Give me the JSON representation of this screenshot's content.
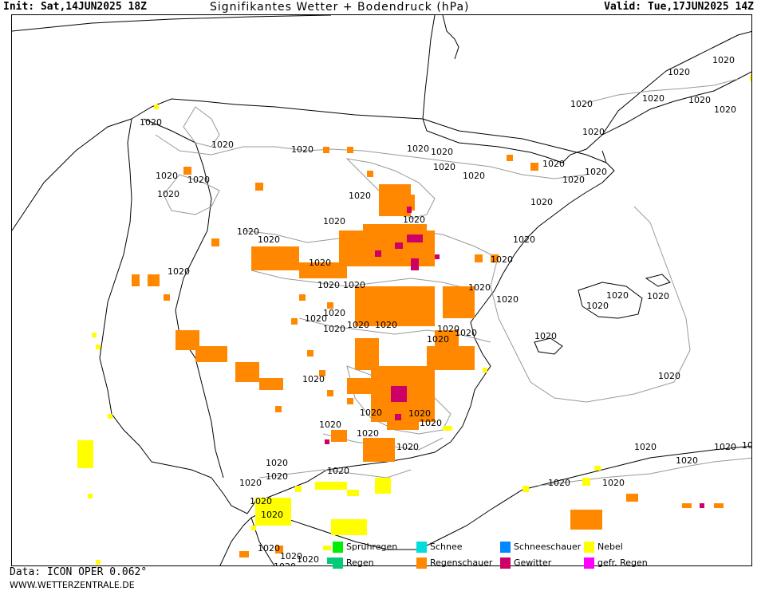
{
  "header": {
    "init": "Init: Sat,14JUN2025 18Z",
    "title": "Signifikantes Wetter +  Bodendruck (hPa)",
    "valid": "Valid: Tue,17JUN2025 14Z"
  },
  "isobar_label": "1020",
  "colors": {
    "coast": "#000000",
    "isobar": "#888888",
    "sprühregen": "#00ee00",
    "regen": "#00cc77",
    "schnee": "#00dddd",
    "regenschauer": "#ff8800",
    "schneeschauer": "#0088ff",
    "gewitter": "#cc0066",
    "nebel": "#ffff00",
    "gefr_regen": "#ff00ff"
  },
  "legend": [
    {
      "label": "Sprühregen",
      "color": "#00ee00"
    },
    {
      "label": "Schnee",
      "color": "#00dddd"
    },
    {
      "label": "Schneeschauer",
      "color": "#0088ff"
    },
    {
      "label": "Nebel",
      "color": "#ffff00"
    },
    {
      "label": "Regen",
      "color": "#00cc77"
    },
    {
      "label": "Regenschauer",
      "color": "#ff8800"
    },
    {
      "label": "Gewitter",
      "color": "#cc0066"
    },
    {
      "label": "gefr. Regen",
      "color": "#ff00ff"
    }
  ],
  "footer": {
    "data": "Data: ICON OPER 0.062°",
    "url": "WWW.WETTERZENTRALE.DE"
  }
}
